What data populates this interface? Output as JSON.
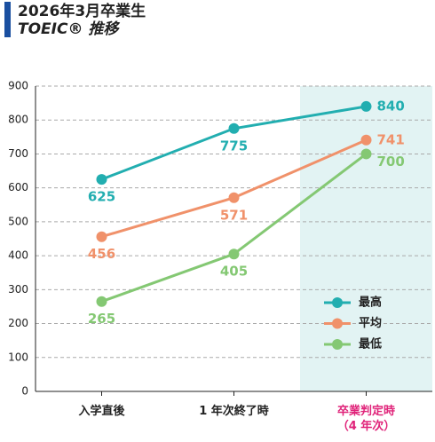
{
  "chart_data": {
    "type": "line",
    "title": "2026年3月卒業生",
    "subtitle": "TOEIC® 推移",
    "categories": [
      "入学直後",
      "1 年次終了時",
      "卒業判定時\n（4 年次）"
    ],
    "highlight_index": 2,
    "highlight_color": "#e2f3f3",
    "highlight_label_color": "#e0247a",
    "series": [
      {
        "name": "最高",
        "color": "#22aeb0",
        "values": [
          625,
          775,
          840
        ]
      },
      {
        "name": "平均",
        "color": "#f0916a",
        "values": [
          456,
          571,
          741
        ]
      },
      {
        "name": "最低",
        "color": "#84c873",
        "values": [
          265,
          405,
          700
        ]
      }
    ],
    "ylim": [
      0,
      900
    ],
    "yticks": [
      0,
      100,
      200,
      300,
      400,
      500,
      600,
      700,
      800,
      900
    ],
    "grid": true
  }
}
